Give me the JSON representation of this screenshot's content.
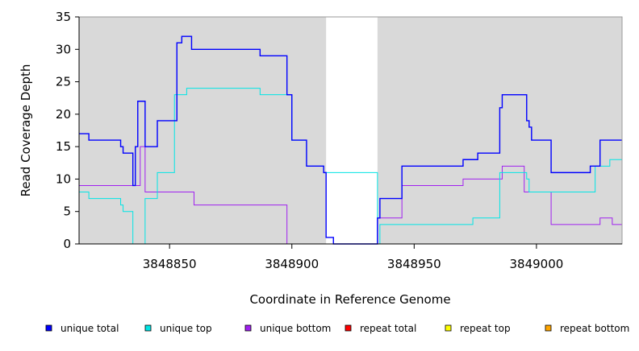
{
  "chart_data": {
    "type": "line",
    "subtype": "step",
    "title": "",
    "xlabel": "Coordinate in Reference Genome",
    "ylabel": "Read Coverage Depth",
    "xlim": [
      3848813,
      3849035
    ],
    "ylim": [
      0,
      35
    ],
    "x_ticks": [
      3848850,
      3848900,
      3848950,
      3849000
    ],
    "x_tick_labels": [
      "3848850",
      "3848900",
      "3848950",
      "3849000"
    ],
    "y_ticks": [
      0,
      5,
      10,
      15,
      20,
      25,
      30,
      35
    ],
    "y_tick_labels": [
      "0",
      "5",
      "10",
      "15",
      "20",
      "25",
      "30",
      "35"
    ],
    "grid": false,
    "plot_background": "#d9d9d9",
    "highlight_region": {
      "x": [
        3848914,
        3848935
      ],
      "color": "#ffffff"
    },
    "legend_placement": "bottom",
    "series": [
      {
        "name": "unique total",
        "color": "#0000ff",
        "x": [
          3848813,
          3848817,
          3848830,
          3848831,
          3848835,
          3848836,
          3848837,
          3848840,
          3848841,
          3848845,
          3848853,
          3848855,
          3848859,
          3848887,
          3848898,
          3848900,
          3848906,
          3848913,
          3848914,
          3848917,
          3848935,
          3848936,
          3848945,
          3848970,
          3848976,
          3848985,
          3848986,
          3848996,
          3848997,
          3848998,
          3849006,
          3849022,
          3849026,
          3849035
        ],
        "values": [
          17,
          16,
          15,
          14,
          9,
          15,
          22,
          15,
          15,
          19,
          31,
          32,
          30,
          29,
          23,
          16,
          12,
          11,
          1,
          0,
          4,
          7,
          12,
          13,
          14,
          21,
          23,
          19,
          18,
          16,
          11,
          12,
          16,
          16
        ]
      },
      {
        "name": "unique top",
        "color": "#00e5e5",
        "x": [
          3848813,
          3848817,
          3848830,
          3848831,
          3848835,
          3848837,
          3848840,
          3848845,
          3848852,
          3848853,
          3848857,
          3848887,
          3848898,
          3848900,
          3848906,
          3848913,
          3848935,
          3848936,
          3848974,
          3848985,
          3848987,
          3848996,
          3848997,
          3849024,
          3849030,
          3849035
        ],
        "values": [
          8,
          7,
          6,
          5,
          0,
          0,
          7,
          11,
          23,
          23,
          24,
          23,
          23,
          16,
          12,
          11,
          0,
          3,
          4,
          11,
          11,
          10,
          8,
          12,
          13,
          13
        ]
      },
      {
        "name": "unique bottom",
        "color": "#a020f0",
        "x": [
          3848813,
          3848835,
          3848838,
          3848840,
          3848853,
          3848860,
          3848898,
          3848917,
          3848935,
          3848945,
          3848970,
          3848986,
          3848995,
          3849006,
          3849026,
          3849031,
          3849035
        ],
        "values": [
          9,
          9,
          15,
          8,
          8,
          6,
          0,
          0,
          4,
          9,
          10,
          12,
          8,
          3,
          4,
          3,
          3
        ]
      },
      {
        "name": "repeat total",
        "color": "#ff0000",
        "x": [
          3848813,
          3849035
        ],
        "values": [
          0,
          0
        ]
      },
      {
        "name": "repeat top",
        "color": "#ffff00",
        "x": [
          3848813,
          3849035
        ],
        "values": [
          0,
          0
        ]
      },
      {
        "name": "repeat bottom",
        "color": "#ffa500",
        "x": [
          3848813,
          3849035
        ],
        "values": [
          0,
          0
        ]
      }
    ]
  }
}
